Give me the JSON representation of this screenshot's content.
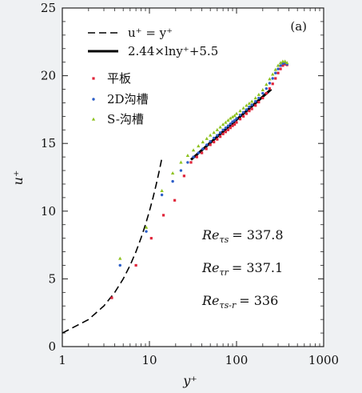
{
  "chart_data": {
    "type": "scatter",
    "panel_label": "(a)",
    "xlabel": "y⁺",
    "ylabel": "u⁺",
    "xscale": "log",
    "xlim": [
      1,
      1000
    ],
    "ylim": [
      0,
      25
    ],
    "x_ticks": [
      1,
      10,
      100,
      1000
    ],
    "x_tick_labels": [
      "1",
      "10",
      "100",
      "1000"
    ],
    "y_ticks": [
      0,
      5,
      10,
      15,
      20,
      25
    ],
    "y_tick_labels": [
      "0",
      "5",
      "10",
      "15",
      "20",
      "25"
    ],
    "legend_position": "top-left",
    "lines": [
      {
        "name": "u⁺ = y⁺",
        "style": "dashed",
        "color": "#000000",
        "x": [
          1,
          2,
          3,
          4,
          5,
          6,
          7,
          8,
          9,
          10,
          11,
          12,
          13,
          14
        ],
        "y": [
          1,
          2,
          3,
          4,
          5,
          6,
          7,
          8,
          9,
          10,
          11,
          12,
          13,
          14
        ]
      },
      {
        "name": "2.44×lny⁺+5.5",
        "style": "solid",
        "color": "#000000",
        "x": [
          30,
          250
        ],
        "y": [
          13.8,
          19.0
        ]
      }
    ],
    "series": [
      {
        "name": "平板",
        "marker": "square",
        "color": "#e0253a",
        "x": [
          3.7,
          7.0,
          10.5,
          14.5,
          19.5,
          25,
          30,
          35,
          40,
          45,
          50,
          55,
          60,
          65,
          70,
          75,
          80,
          85,
          90,
          95,
          100,
          110,
          120,
          130,
          140,
          150,
          165,
          180,
          200,
          220,
          240,
          260,
          280,
          300,
          320,
          340,
          360,
          380
        ],
        "y": [
          3.6,
          6.0,
          8.0,
          9.7,
          10.8,
          12.6,
          13.6,
          14.0,
          14.3,
          14.6,
          14.9,
          15.1,
          15.3,
          15.5,
          15.7,
          15.85,
          16.0,
          16.15,
          16.3,
          16.4,
          16.55,
          16.8,
          17.0,
          17.2,
          17.4,
          17.55,
          17.8,
          18.05,
          18.35,
          18.7,
          19.05,
          19.4,
          19.8,
          20.2,
          20.5,
          20.75,
          20.85,
          20.8
        ]
      },
      {
        "name": "2D沟槽",
        "marker": "circle",
        "color": "#2c5ec8",
        "x": [
          4.6,
          9.2,
          13.9,
          18.5,
          23,
          27.5,
          32,
          36.5,
          41,
          45.5,
          50,
          55,
          60,
          65,
          70,
          75,
          80,
          85,
          90,
          95,
          100,
          110,
          120,
          130,
          140,
          150,
          165,
          180,
          200,
          220,
          240,
          260,
          280,
          300,
          320,
          340,
          360,
          380
        ],
        "y": [
          6.0,
          8.5,
          11.2,
          12.2,
          13.0,
          13.6,
          14.0,
          14.3,
          14.6,
          14.9,
          15.15,
          15.4,
          15.6,
          15.8,
          16.0,
          16.15,
          16.3,
          16.45,
          16.6,
          16.7,
          16.85,
          17.1,
          17.3,
          17.5,
          17.7,
          17.85,
          18.1,
          18.35,
          18.7,
          19.05,
          19.45,
          19.8,
          20.2,
          20.5,
          20.75,
          20.9,
          20.95,
          20.85
        ]
      },
      {
        "name": "S-沟槽",
        "marker": "triangle",
        "color": "#8ec21f",
        "x": [
          4.6,
          9.2,
          13.9,
          18.5,
          23,
          27.5,
          32,
          36.5,
          41,
          45.5,
          50,
          55,
          60,
          65,
          70,
          75,
          80,
          85,
          90,
          95,
          100,
          110,
          120,
          130,
          140,
          150,
          165,
          180,
          200,
          220,
          240,
          260,
          280,
          300,
          320,
          340,
          360,
          380
        ],
        "y": [
          6.5,
          8.8,
          11.5,
          12.8,
          13.6,
          14.1,
          14.5,
          14.8,
          15.1,
          15.35,
          15.6,
          15.8,
          16.0,
          16.2,
          16.4,
          16.55,
          16.7,
          16.85,
          16.95,
          17.05,
          17.2,
          17.4,
          17.6,
          17.8,
          17.95,
          18.1,
          18.35,
          18.6,
          18.95,
          19.35,
          19.75,
          20.1,
          20.45,
          20.75,
          20.95,
          21.05,
          21.05,
          20.95
        ]
      }
    ],
    "annotations": [
      {
        "text": "Re",
        "sub": "τs",
        "value": "= 337.8"
      },
      {
        "text": "Re",
        "sub": "τr",
        "value": "= 337.1"
      },
      {
        "text": "Re",
        "sub": "τs-r",
        "value": "= 336"
      }
    ]
  }
}
